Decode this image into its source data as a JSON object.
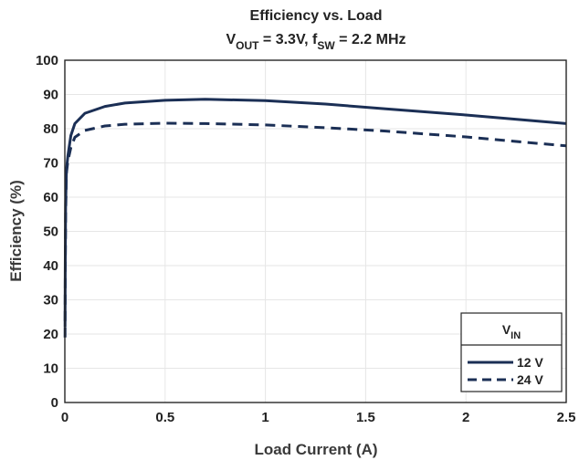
{
  "chart_data": {
    "type": "line",
    "title": "Efficiency vs. Load",
    "subtitle": {
      "vout_main": "V",
      "vout_sub": "OUT",
      "vout_value": " = 3.3V, f",
      "fsw_sub": "SW",
      "fsw_value": " = 2.2 MHz"
    },
    "xlabel": "Load Current (A)",
    "ylabel": "Efficiency (%)",
    "xlim": [
      0,
      2.5
    ],
    "ylim": [
      0,
      100
    ],
    "x_ticks": [
      "0",
      "0.5",
      "1",
      "1.5",
      "2",
      "2.5"
    ],
    "y_ticks": [
      "0",
      "10",
      "20",
      "30",
      "40",
      "50",
      "60",
      "70",
      "80",
      "90",
      "100"
    ],
    "grid": true,
    "legend": {
      "title_main": "V",
      "title_sub": "IN",
      "placement": "bottom-right"
    },
    "series": [
      {
        "name": "12 V",
        "style": "solid",
        "color": "#1b2f55",
        "x": [
          0.001,
          0.002,
          0.004,
          0.008,
          0.015,
          0.03,
          0.05,
          0.1,
          0.2,
          0.3,
          0.5,
          0.7,
          1.0,
          1.3,
          1.6,
          2.0,
          2.3,
          2.5
        ],
        "y": [
          22,
          40,
          58,
          68,
          72,
          78,
          81.5,
          84.5,
          86.5,
          87.5,
          88.3,
          88.6,
          88.2,
          87.2,
          85.8,
          84,
          82.5,
          81.5
        ]
      },
      {
        "name": "24 V",
        "style": "dashed",
        "color": "#1b2f55",
        "x": [
          0.001,
          0.002,
          0.004,
          0.008,
          0.015,
          0.03,
          0.05,
          0.1,
          0.2,
          0.3,
          0.5,
          0.7,
          1.0,
          1.3,
          1.6,
          2.0,
          2.3,
          2.5
        ],
        "y": [
          19,
          35,
          55,
          67,
          70.5,
          74.5,
          77.5,
          79.5,
          80.8,
          81.3,
          81.6,
          81.5,
          81.1,
          80.3,
          79.3,
          77.6,
          76,
          75
        ]
      }
    ]
  }
}
